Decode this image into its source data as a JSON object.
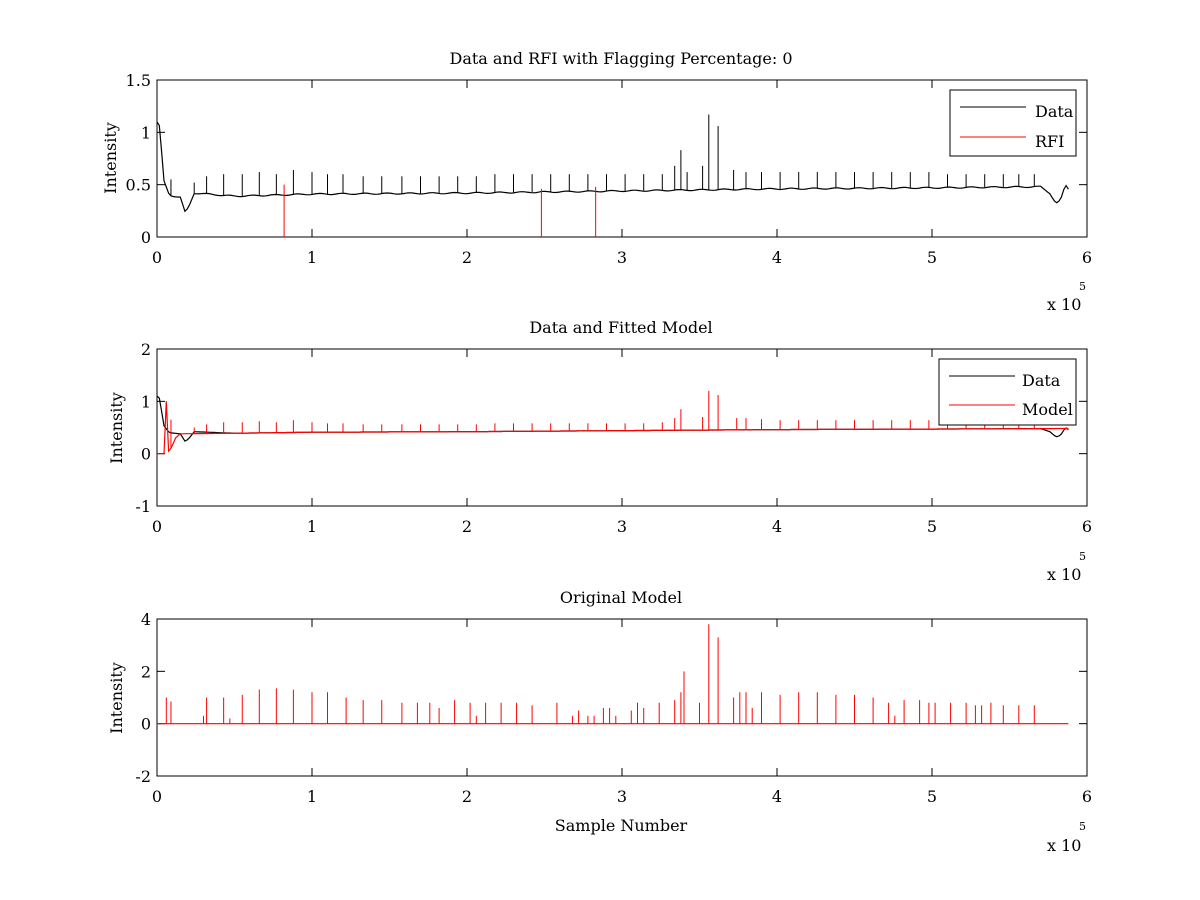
{
  "chart_data": [
    {
      "type": "line",
      "title": "Data and RFI with Flagging Percentage: 0",
      "xlabel": "",
      "ylabel": "Intensity",
      "xlim": [
        0,
        600000
      ],
      "ylim": [
        0,
        1.5
      ],
      "xticks": [
        "0",
        "1",
        "2",
        "3",
        "4",
        "5",
        "6"
      ],
      "yticks": [
        "0",
        "0.5",
        "1",
        "1.5"
      ],
      "x_multiplier": "x 10",
      "x_exponent": "5",
      "grid": false,
      "legend_position": "top-right",
      "series": [
        {
          "name": "Data",
          "color": "#000000",
          "baseline": [
            [
              0,
              1.1
            ],
            [
              2000,
              1.05
            ],
            [
              4000,
              0.55
            ],
            [
              8000,
              0.4
            ],
            [
              15000,
              0.38
            ],
            [
              18000,
              0.24
            ],
            [
              20000,
              0.27
            ],
            [
              24000,
              0.42
            ],
            [
              50000,
              0.39
            ],
            [
              100000,
              0.41
            ],
            [
              200000,
              0.42
            ],
            [
              300000,
              0.44
            ],
            [
              400000,
              0.46
            ],
            [
              500000,
              0.47
            ],
            [
              570000,
              0.48
            ],
            [
              576000,
              0.42
            ],
            [
              580000,
              0.32
            ],
            [
              583000,
              0.35
            ],
            [
              586000,
              0.5
            ],
            [
              588000,
              0.46
            ]
          ],
          "peaks": [
            [
              9000,
              0.55
            ],
            [
              24000,
              0.52
            ],
            [
              32000,
              0.58
            ],
            [
              43000,
              0.6
            ],
            [
              55000,
              0.6
            ],
            [
              66000,
              0.62
            ],
            [
              77000,
              0.6
            ],
            [
              88000,
              0.64
            ],
            [
              100000,
              0.62
            ],
            [
              110000,
              0.6
            ],
            [
              120000,
              0.6
            ],
            [
              133000,
              0.58
            ],
            [
              145000,
              0.58
            ],
            [
              158000,
              0.58
            ],
            [
              170000,
              0.58
            ],
            [
              182000,
              0.58
            ],
            [
              194000,
              0.58
            ],
            [
              206000,
              0.58
            ],
            [
              218000,
              0.6
            ],
            [
              230000,
              0.6
            ],
            [
              242000,
              0.6
            ],
            [
              254000,
              0.6
            ],
            [
              266000,
              0.6
            ],
            [
              278000,
              0.6
            ],
            [
              290000,
              0.6
            ],
            [
              302000,
              0.6
            ],
            [
              314000,
              0.6
            ],
            [
              326000,
              0.6
            ],
            [
              334000,
              0.68
            ],
            [
              338000,
              0.83
            ],
            [
              342000,
              0.62
            ],
            [
              352000,
              0.68
            ],
            [
              356000,
              1.17
            ],
            [
              362000,
              1.06
            ],
            [
              372000,
              0.64
            ],
            [
              380000,
              0.62
            ],
            [
              390000,
              0.62
            ],
            [
              402000,
              0.62
            ],
            [
              414000,
              0.62
            ],
            [
              426000,
              0.62
            ],
            [
              438000,
              0.62
            ],
            [
              450000,
              0.62
            ],
            [
              462000,
              0.62
            ],
            [
              474000,
              0.62
            ],
            [
              486000,
              0.62
            ],
            [
              498000,
              0.62
            ],
            [
              510000,
              0.6
            ],
            [
              522000,
              0.6
            ],
            [
              534000,
              0.6
            ],
            [
              546000,
              0.6
            ],
            [
              556000,
              0.6
            ],
            [
              566000,
              0.6
            ]
          ]
        },
        {
          "name": "RFI",
          "color": "#ff0000",
          "peaks": [
            [
              82000,
              0.5
            ],
            [
              248000,
              0.46
            ],
            [
              283000,
              0.48
            ]
          ]
        }
      ]
    },
    {
      "type": "line",
      "title": "Data and Fitted Model",
      "xlabel": "",
      "ylabel": "Intensity",
      "xlim": [
        0,
        600000
      ],
      "ylim": [
        -1,
        2
      ],
      "xticks": [
        "0",
        "1",
        "2",
        "3",
        "4",
        "5",
        "6"
      ],
      "yticks": [
        "-1",
        "0",
        "1",
        "2"
      ],
      "x_multiplier": "x 10",
      "x_exponent": "5",
      "grid": false,
      "legend_position": "top-right",
      "series": [
        {
          "name": "Data",
          "color": "#000000",
          "baseline": [
            [
              0,
              1.1
            ],
            [
              2000,
              1.05
            ],
            [
              4000,
              0.55
            ],
            [
              8000,
              0.4
            ],
            [
              15000,
              0.38
            ],
            [
              18000,
              0.24
            ],
            [
              20000,
              0.27
            ],
            [
              24000,
              0.42
            ],
            [
              50000,
              0.39
            ],
            [
              100000,
              0.41
            ],
            [
              200000,
              0.42
            ],
            [
              300000,
              0.44
            ],
            [
              400000,
              0.46
            ],
            [
              500000,
              0.47
            ],
            [
              570000,
              0.48
            ],
            [
              576000,
              0.42
            ],
            [
              580000,
              0.32
            ],
            [
              583000,
              0.35
            ],
            [
              586000,
              0.5
            ],
            [
              588000,
              0.46
            ]
          ]
        },
        {
          "name": "Model",
          "color": "#ff0000",
          "baseline": [
            [
              0,
              0.0
            ],
            [
              5000,
              0.0
            ],
            [
              5500,
              1.0
            ],
            [
              7000,
              1.0
            ],
            [
              7500,
              0.05
            ],
            [
              9000,
              0.1
            ],
            [
              12000,
              0.3
            ],
            [
              15000,
              0.38
            ],
            [
              50000,
              0.39
            ],
            [
              100000,
              0.41
            ],
            [
              200000,
              0.42
            ],
            [
              300000,
              0.44
            ],
            [
              400000,
              0.46
            ],
            [
              500000,
              0.47
            ],
            [
              580000,
              0.48
            ],
            [
              588000,
              0.48
            ]
          ],
          "peaks": [
            [
              9000,
              0.65
            ],
            [
              24000,
              0.5
            ],
            [
              32000,
              0.56
            ],
            [
              43000,
              0.6
            ],
            [
              55000,
              0.6
            ],
            [
              66000,
              0.62
            ],
            [
              77000,
              0.6
            ],
            [
              88000,
              0.64
            ],
            [
              100000,
              0.6
            ],
            [
              110000,
              0.58
            ],
            [
              120000,
              0.58
            ],
            [
              133000,
              0.56
            ],
            [
              145000,
              0.56
            ],
            [
              158000,
              0.56
            ],
            [
              170000,
              0.56
            ],
            [
              182000,
              0.56
            ],
            [
              194000,
              0.56
            ],
            [
              206000,
              0.56
            ],
            [
              218000,
              0.58
            ],
            [
              230000,
              0.58
            ],
            [
              242000,
              0.58
            ],
            [
              254000,
              0.58
            ],
            [
              266000,
              0.58
            ],
            [
              278000,
              0.58
            ],
            [
              290000,
              0.58
            ],
            [
              302000,
              0.58
            ],
            [
              314000,
              0.58
            ],
            [
              326000,
              0.6
            ],
            [
              334000,
              0.68
            ],
            [
              338000,
              0.85
            ],
            [
              352000,
              0.7
            ],
            [
              356000,
              1.2
            ],
            [
              362000,
              1.12
            ],
            [
              374000,
              0.68
            ],
            [
              380000,
              0.68
            ],
            [
              390000,
              0.66
            ],
            [
              402000,
              0.64
            ],
            [
              414000,
              0.64
            ],
            [
              426000,
              0.64
            ],
            [
              438000,
              0.64
            ],
            [
              450000,
              0.64
            ],
            [
              462000,
              0.64
            ],
            [
              474000,
              0.64
            ],
            [
              486000,
              0.64
            ],
            [
              498000,
              0.64
            ],
            [
              510000,
              0.62
            ],
            [
              522000,
              0.62
            ],
            [
              534000,
              0.62
            ],
            [
              546000,
              0.62
            ],
            [
              556000,
              0.62
            ],
            [
              566000,
              0.62
            ]
          ]
        }
      ]
    },
    {
      "type": "line",
      "title": "Original Model",
      "xlabel": "Sample Number",
      "ylabel": "Intensity",
      "xlim": [
        0,
        600000
      ],
      "ylim": [
        -2,
        4
      ],
      "xticks": [
        "0",
        "1",
        "2",
        "3",
        "4",
        "5",
        "6"
      ],
      "yticks": [
        "-2",
        "0",
        "2",
        "4"
      ],
      "x_multiplier": "x 10",
      "x_exponent": "5",
      "grid": false,
      "series": [
        {
          "color": "#ff0000",
          "baseline": [
            [
              0,
              0.0
            ],
            [
              588000,
              0.0
            ]
          ],
          "peaks": [
            [
              6000,
              1.0
            ],
            [
              9000,
              0.85
            ],
            [
              30000,
              0.3
            ],
            [
              32000,
              1.0
            ],
            [
              43000,
              1.0
            ],
            [
              47000,
              0.2
            ],
            [
              55000,
              1.1
            ],
            [
              66000,
              1.3
            ],
            [
              77000,
              1.35
            ],
            [
              88000,
              1.3
            ],
            [
              100000,
              1.2
            ],
            [
              110000,
              1.2
            ],
            [
              122000,
              1.0
            ],
            [
              133000,
              0.9
            ],
            [
              145000,
              0.9
            ],
            [
              158000,
              0.8
            ],
            [
              168000,
              0.8
            ],
            [
              176000,
              0.8
            ],
            [
              182000,
              0.6
            ],
            [
              192000,
              0.9
            ],
            [
              202000,
              0.8
            ],
            [
              206000,
              0.3
            ],
            [
              212000,
              0.8
            ],
            [
              222000,
              0.8
            ],
            [
              232000,
              0.8
            ],
            [
              242000,
              0.7
            ],
            [
              258000,
              0.8
            ],
            [
              268000,
              0.3
            ],
            [
              272000,
              0.5
            ],
            [
              278000,
              0.3
            ],
            [
              282000,
              0.3
            ],
            [
              288000,
              0.6
            ],
            [
              292000,
              0.6
            ],
            [
              296000,
              0.3
            ],
            [
              306000,
              0.5
            ],
            [
              310000,
              0.8
            ],
            [
              314000,
              0.6
            ],
            [
              324000,
              0.8
            ],
            [
              334000,
              0.9
            ],
            [
              338000,
              1.2
            ],
            [
              340000,
              2.0
            ],
            [
              350000,
              0.8
            ],
            [
              356000,
              3.8
            ],
            [
              362000,
              3.3
            ],
            [
              372000,
              1.0
            ],
            [
              376000,
              1.2
            ],
            [
              380000,
              1.2
            ],
            [
              384000,
              0.6
            ],
            [
              390000,
              1.2
            ],
            [
              402000,
              1.1
            ],
            [
              414000,
              1.2
            ],
            [
              426000,
              1.2
            ],
            [
              438000,
              1.1
            ],
            [
              450000,
              1.1
            ],
            [
              462000,
              1.0
            ],
            [
              472000,
              0.8
            ],
            [
              476000,
              0.3
            ],
            [
              482000,
              0.9
            ],
            [
              492000,
              0.9
            ],
            [
              498000,
              0.8
            ],
            [
              502000,
              0.8
            ],
            [
              512000,
              0.8
            ],
            [
              522000,
              0.8
            ],
            [
              528000,
              0.7
            ],
            [
              532000,
              0.7
            ],
            [
              538000,
              0.8
            ],
            [
              546000,
              0.7
            ],
            [
              556000,
              0.7
            ],
            [
              566000,
              0.7
            ]
          ]
        }
      ]
    }
  ]
}
